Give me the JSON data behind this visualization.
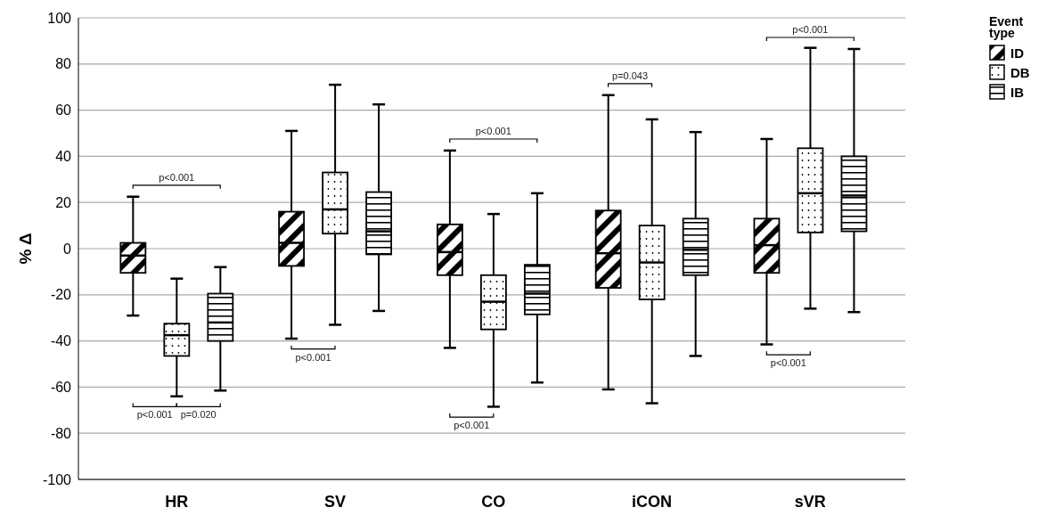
{
  "chart_data": {
    "type": "box",
    "ylabel": "% Δ",
    "legend_title": "Event type",
    "categories": [
      "HR",
      "SV",
      "CO",
      "iCON",
      "sVR"
    ],
    "series": [
      {
        "name": "ID",
        "color": "#000000",
        "boxes": [
          {
            "low": -29,
            "q1": -10.5,
            "median": -3,
            "q3": 2.5,
            "high": 22.5
          },
          {
            "low": -39,
            "q1": -7.5,
            "median": 2.5,
            "q3": 16,
            "high": 51
          },
          {
            "low": -43,
            "q1": -11.5,
            "median": -1.5,
            "q3": 10.5,
            "high": 42.5
          },
          {
            "low": -61,
            "q1": -17,
            "median": -2,
            "q3": 16.5,
            "high": 66.5
          },
          {
            "low": -41.5,
            "q1": -10.5,
            "median": 1.5,
            "q3": 13,
            "high": 47.5
          }
        ]
      },
      {
        "name": "DB",
        "color": "#000000",
        "boxes": [
          {
            "low": -64,
            "q1": -46.5,
            "median": -37.5,
            "q3": -32.5,
            "high": -13
          },
          {
            "low": -33,
            "q1": 6.5,
            "median": 17,
            "q3": 33,
            "high": 71
          },
          {
            "low": -68.5,
            "q1": -35,
            "median": -23,
            "q3": -11.5,
            "high": 15
          },
          {
            "low": -67,
            "q1": -22,
            "median": -6,
            "q3": 10,
            "high": 56
          },
          {
            "low": -26,
            "q1": 7,
            "median": 24,
            "q3": 43.5,
            "high": 87
          }
        ]
      },
      {
        "name": "IB",
        "color": "#000000",
        "boxes": [
          {
            "low": -61.5,
            "q1": -40,
            "median": -32,
            "q3": -19.5,
            "high": -8
          },
          {
            "low": -27,
            "q1": -2.5,
            "median": 7.5,
            "q3": 24.5,
            "high": 62.5
          },
          {
            "low": -58,
            "q1": -28.5,
            "median": -19.5,
            "q3": -7,
            "high": 24
          },
          {
            "low": -46.5,
            "q1": -11.5,
            "median": -0.5,
            "q3": 13,
            "high": 50.5
          },
          {
            "low": -27.5,
            "q1": 7.5,
            "median": 23,
            "q3": 40,
            "high": 86.5
          }
        ]
      }
    ],
    "ylim": [
      -100,
      100
    ],
    "yticks": [
      -100,
      -80,
      -60,
      -40,
      -20,
      0,
      20,
      40,
      60,
      80,
      100
    ],
    "grid": "y",
    "legend": "top right",
    "annotations": [
      "p<0.001",
      "p<0.001",
      "p=0.020",
      "p<0.001",
      "p<0.001",
      "p<0.001",
      "p=0.043",
      "p<0.001",
      "p<0.001"
    ]
  }
}
